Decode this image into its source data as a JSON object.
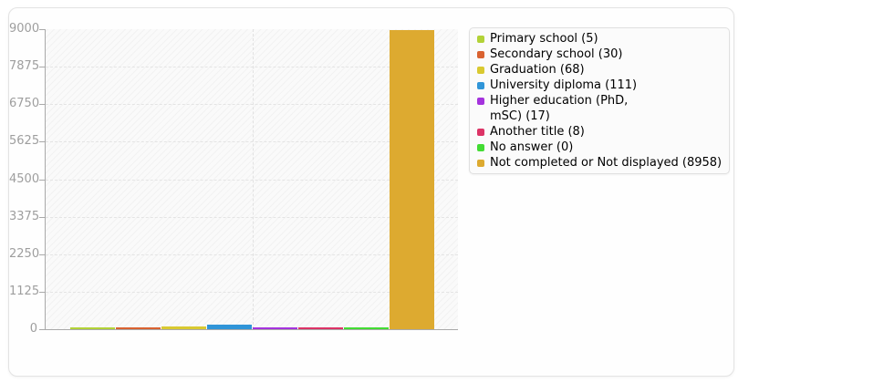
{
  "chart_data": {
    "type": "bar",
    "title": "",
    "xlabel": "",
    "ylabel": "",
    "ylim": [
      0,
      9000
    ],
    "yticks": [
      0,
      1125,
      2250,
      3375,
      4500,
      5625,
      6750,
      7875,
      9000
    ],
    "grid": "horizontal-dashed",
    "plot_background": "hatched-diagonal",
    "legend_position": "right",
    "categories": [
      "Primary school",
      "Secondary school",
      "Graduation",
      "University diploma",
      "Higher education (PhD, mSC)",
      "Another title",
      "No answer",
      "Not completed or Not displayed"
    ],
    "values": [
      5,
      30,
      68,
      111,
      17,
      8,
      0,
      8958
    ],
    "colors": [
      "#b2d237",
      "#d96230",
      "#d9c930",
      "#3095d8",
      "#a433dd",
      "#dc3366",
      "#43dc33",
      "#ddaa30"
    ]
  },
  "legend": {
    "items": [
      {
        "label": "Primary school (5)",
        "color": "#b2d237"
      },
      {
        "label": "Secondary school (30)",
        "color": "#d96230"
      },
      {
        "label": "Graduation (68)",
        "color": "#d9c930"
      },
      {
        "label": "University diploma (111)",
        "color": "#3095d8"
      },
      {
        "label": "Higher education (PhD,\nmSC) (17)",
        "color": "#a433dd"
      },
      {
        "label": "Another title (8)",
        "color": "#dc3366"
      },
      {
        "label": "No answer (0)",
        "color": "#43dc33"
      },
      {
        "label": "Not completed or Not displayed (8958)",
        "color": "#ddaa30"
      }
    ]
  },
  "axis": {
    "y_tick_labels": [
      "9000",
      "7875",
      "6750",
      "5625",
      "4500",
      "3375",
      "2250",
      "1125",
      "0"
    ]
  }
}
